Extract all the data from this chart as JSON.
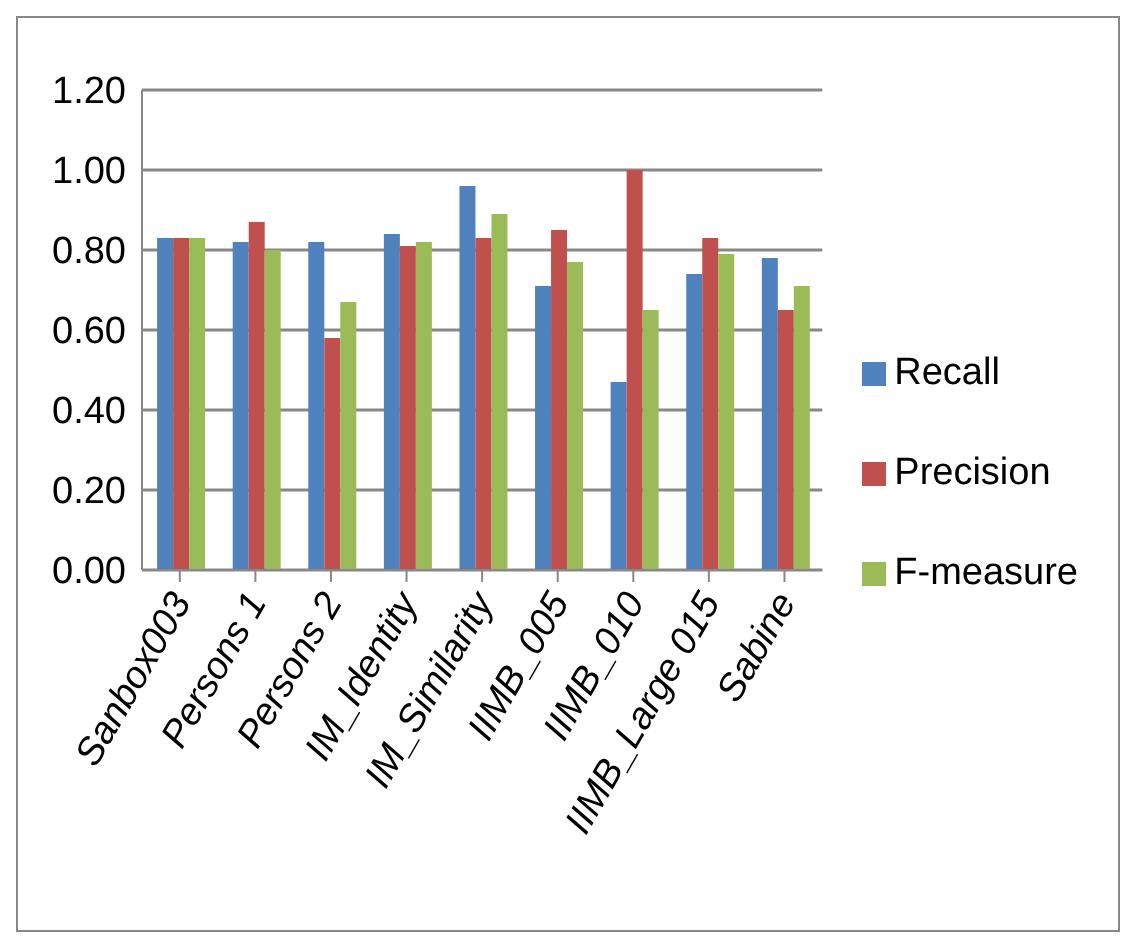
{
  "chart_data": {
    "type": "bar",
    "categories": [
      "Sanbox003",
      "Persons 1",
      "Persons 2",
      "IM_Identity",
      "IM_Similarity",
      "IIMB_005",
      "IIMB_010",
      "IIMB_Large 015",
      "Sabine"
    ],
    "series": [
      {
        "name": "Recall",
        "color": "#4f81bd",
        "values": [
          0.83,
          0.82,
          0.82,
          0.84,
          0.96,
          0.71,
          0.47,
          0.74,
          0.78
        ]
      },
      {
        "name": "Precision",
        "color": "#c0504d",
        "values": [
          0.83,
          0.87,
          0.58,
          0.81,
          0.83,
          0.85,
          1.0,
          0.83,
          0.65
        ]
      },
      {
        "name": "F-measure",
        "color": "#9bbb59",
        "values": [
          0.83,
          0.8,
          0.67,
          0.82,
          0.89,
          0.77,
          0.65,
          0.79,
          0.71
        ]
      }
    ],
    "ylim": [
      0,
      1.2
    ],
    "yticks": [
      {
        "value": 0,
        "label": "0.00"
      },
      {
        "value": 0.2,
        "label": "0.20"
      },
      {
        "value": 0.4,
        "label": "0.40"
      },
      {
        "value": 0.6,
        "label": "0.60"
      },
      {
        "value": 0.8,
        "label": "0.80"
      },
      {
        "value": 1.0,
        "label": "1.00"
      },
      {
        "value": 1.2,
        "label": "1.20"
      }
    ],
    "grid": "y",
    "legend": "right"
  }
}
